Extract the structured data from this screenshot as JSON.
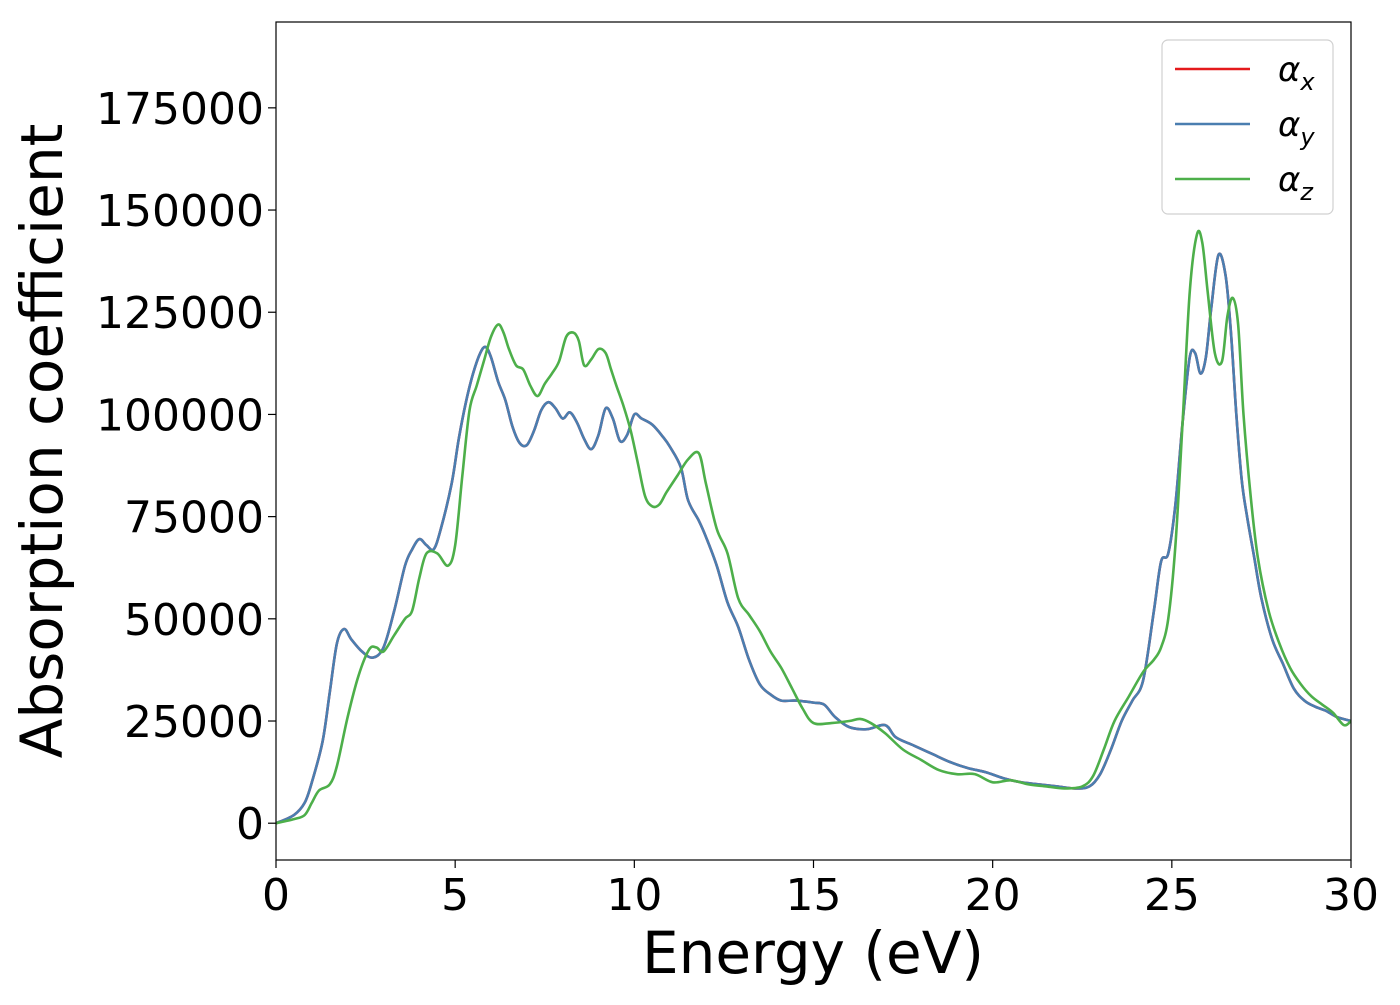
{
  "chart_data": {
    "type": "line",
    "title": "",
    "xlabel": "Energy (eV)",
    "ylabel": "Absorption coefficient",
    "xlim": [
      0,
      30
    ],
    "ylim": [
      -9000,
      196000
    ],
    "xticks": [
      0,
      5,
      10,
      15,
      20,
      25,
      30
    ],
    "yticks": [
      0,
      25000,
      50000,
      75000,
      100000,
      125000,
      150000,
      175000
    ],
    "grid": false,
    "legend_position": "top-right",
    "series": [
      {
        "name": "αx",
        "name_base": "α",
        "name_sub": "x",
        "color": "#e41a1c",
        "x": [
          0,
          0.5,
          0.8,
          1.0,
          1.3,
          1.5,
          1.7,
          1.9,
          2.1,
          2.4,
          2.7,
          3.0,
          3.3,
          3.6,
          3.8,
          4.0,
          4.2,
          4.4,
          4.6,
          4.9,
          5.1,
          5.3,
          5.5,
          5.7,
          5.85,
          6.0,
          6.2,
          6.4,
          6.6,
          6.8,
          7.0,
          7.2,
          7.4,
          7.6,
          7.8,
          8.0,
          8.2,
          8.4,
          8.6,
          8.8,
          9.0,
          9.2,
          9.4,
          9.6,
          9.8,
          10.0,
          10.2,
          10.5,
          10.8,
          11.0,
          11.3,
          11.5,
          11.8,
          12.0,
          12.3,
          12.6,
          12.9,
          13.2,
          13.5,
          13.8,
          14.1,
          14.5,
          15.0,
          15.3,
          15.6,
          16.0,
          16.5,
          17.0,
          17.3,
          17.8,
          18.3,
          18.8,
          19.3,
          19.8,
          20.3,
          20.8,
          21.3,
          21.8,
          22.3,
          22.7,
          23.0,
          23.3,
          23.6,
          23.9,
          24.2,
          24.5,
          24.7,
          24.9,
          25.1,
          25.3,
          25.5,
          25.65,
          25.8,
          25.95,
          26.1,
          26.3,
          26.5,
          26.65,
          26.8,
          26.95,
          27.1,
          27.3,
          27.5,
          27.8,
          28.1,
          28.4,
          28.7,
          29.0,
          29.3,
          29.6,
          30.0
        ],
        "y": [
          0,
          2000,
          5000,
          10000,
          20000,
          32000,
          44000,
          47500,
          45000,
          42000,
          40500,
          43000,
          52000,
          63000,
          67000,
          69500,
          68000,
          67000,
          72000,
          83000,
          94000,
          103000,
          110000,
          115000,
          116500,
          114000,
          108000,
          103500,
          97000,
          93000,
          92500,
          96000,
          101000,
          103000,
          101500,
          99000,
          100500,
          98000,
          94000,
          91500,
          95000,
          101500,
          99000,
          93500,
          95000,
          100000,
          99000,
          97500,
          94500,
          92000,
          87000,
          79000,
          74000,
          70000,
          63000,
          54000,
          48000,
          40000,
          34000,
          31500,
          30000,
          30000,
          29500,
          29000,
          26000,
          23500,
          23000,
          24000,
          21000,
          19000,
          17000,
          15000,
          13500,
          12500,
          11000,
          10000,
          9500,
          9000,
          8500,
          9000,
          12000,
          18000,
          25000,
          30000,
          35000,
          52000,
          64000,
          66000,
          78000,
          98000,
          114000,
          115000,
          110000,
          114000,
          126000,
          139000,
          134000,
          120000,
          100000,
          84000,
          75000,
          65000,
          55000,
          45000,
          39000,
          33000,
          30000,
          28500,
          27500,
          26000,
          25000
        ]
      },
      {
        "name": "αy",
        "name_base": "α",
        "name_sub": "y",
        "color": "#4a7eb0",
        "x": [
          0,
          0.5,
          0.8,
          1.0,
          1.3,
          1.5,
          1.7,
          1.9,
          2.1,
          2.4,
          2.7,
          3.0,
          3.3,
          3.6,
          3.8,
          4.0,
          4.2,
          4.4,
          4.6,
          4.9,
          5.1,
          5.3,
          5.5,
          5.7,
          5.85,
          6.0,
          6.2,
          6.4,
          6.6,
          6.8,
          7.0,
          7.2,
          7.4,
          7.6,
          7.8,
          8.0,
          8.2,
          8.4,
          8.6,
          8.8,
          9.0,
          9.2,
          9.4,
          9.6,
          9.8,
          10.0,
          10.2,
          10.5,
          10.8,
          11.0,
          11.3,
          11.5,
          11.8,
          12.0,
          12.3,
          12.6,
          12.9,
          13.2,
          13.5,
          13.8,
          14.1,
          14.5,
          15.0,
          15.3,
          15.6,
          16.0,
          16.5,
          17.0,
          17.3,
          17.8,
          18.3,
          18.8,
          19.3,
          19.8,
          20.3,
          20.8,
          21.3,
          21.8,
          22.3,
          22.7,
          23.0,
          23.3,
          23.6,
          23.9,
          24.2,
          24.5,
          24.7,
          24.9,
          25.1,
          25.3,
          25.5,
          25.65,
          25.8,
          25.95,
          26.1,
          26.3,
          26.5,
          26.65,
          26.8,
          26.95,
          27.1,
          27.3,
          27.5,
          27.8,
          28.1,
          28.4,
          28.7,
          29.0,
          29.3,
          29.6,
          30.0
        ],
        "y": [
          0,
          2000,
          5000,
          10000,
          20000,
          32000,
          44000,
          47500,
          45000,
          42000,
          40500,
          43000,
          52000,
          63000,
          67000,
          69500,
          68000,
          67000,
          72000,
          83000,
          94000,
          103000,
          110000,
          115000,
          116500,
          114000,
          108000,
          103500,
          97000,
          93000,
          92500,
          96000,
          101000,
          103000,
          101500,
          99000,
          100500,
          98000,
          94000,
          91500,
          95000,
          101500,
          99000,
          93500,
          95000,
          100000,
          99000,
          97500,
          94500,
          92000,
          87000,
          79000,
          74000,
          70000,
          63000,
          54000,
          48000,
          40000,
          34000,
          31500,
          30000,
          30000,
          29500,
          29000,
          26000,
          23500,
          23000,
          24000,
          21000,
          19000,
          17000,
          15000,
          13500,
          12500,
          11000,
          10000,
          9500,
          9000,
          8500,
          9000,
          12000,
          18000,
          25000,
          30000,
          35000,
          52000,
          64000,
          66000,
          78000,
          98000,
          114000,
          115000,
          110000,
          114000,
          126000,
          139000,
          134000,
          120000,
          100000,
          84000,
          75000,
          65000,
          55000,
          45000,
          39000,
          33000,
          30000,
          28500,
          27500,
          26000,
          25000
        ]
      },
      {
        "name": "αz",
        "name_base": "α",
        "name_sub": "z",
        "color": "#4daf4a",
        "x": [
          0,
          0.5,
          0.8,
          1.0,
          1.2,
          1.5,
          1.7,
          2.0,
          2.3,
          2.6,
          2.8,
          3.0,
          3.3,
          3.6,
          3.8,
          4.0,
          4.2,
          4.5,
          4.8,
          5.0,
          5.2,
          5.4,
          5.6,
          5.8,
          6.0,
          6.2,
          6.35,
          6.5,
          6.7,
          6.9,
          7.1,
          7.3,
          7.5,
          7.7,
          7.9,
          8.1,
          8.3,
          8.45,
          8.6,
          8.8,
          9.0,
          9.2,
          9.35,
          9.5,
          9.7,
          9.9,
          10.1,
          10.3,
          10.5,
          10.7,
          10.9,
          11.2,
          11.5,
          11.8,
          12.0,
          12.3,
          12.6,
          12.9,
          13.2,
          13.5,
          13.8,
          14.1,
          14.4,
          14.7,
          15.0,
          15.5,
          16.0,
          16.3,
          16.6,
          17.0,
          17.5,
          18.0,
          18.5,
          19.0,
          19.5,
          20.0,
          20.5,
          21.0,
          21.5,
          22.0,
          22.5,
          22.8,
          23.1,
          23.4,
          23.8,
          24.2,
          24.5,
          24.7,
          24.9,
          25.1,
          25.3,
          25.5,
          25.7,
          25.85,
          26.0,
          26.2,
          26.4,
          26.55,
          26.7,
          26.85,
          27.0,
          27.2,
          27.4,
          27.7,
          28.0,
          28.3,
          28.6,
          28.9,
          29.2,
          29.5,
          29.8,
          30.0
        ],
        "y": [
          0,
          1000,
          2000,
          5000,
          8000,
          9500,
          14000,
          26000,
          36000,
          42500,
          43000,
          42000,
          46000,
          50000,
          52000,
          60000,
          66000,
          66000,
          63000,
          68000,
          85000,
          101000,
          107000,
          113000,
          119000,
          122000,
          120000,
          116000,
          112000,
          111000,
          107000,
          104500,
          107500,
          110000,
          113000,
          119000,
          120000,
          118000,
          112000,
          113500,
          116000,
          115000,
          111000,
          107000,
          102000,
          96000,
          88000,
          80000,
          77500,
          78000,
          81000,
          85000,
          89000,
          90500,
          83000,
          72000,
          66000,
          55000,
          51000,
          47000,
          42000,
          38000,
          33000,
          28000,
          24500,
          24500,
          25000,
          25500,
          24500,
          22000,
          18000,
          15500,
          13000,
          12000,
          12000,
          10000,
          10500,
          9500,
          9000,
          8500,
          9000,
          11500,
          18000,
          25000,
          31000,
          37000,
          40000,
          43000,
          50000,
          68000,
          98000,
          130000,
          144000,
          142000,
          130000,
          115000,
          113000,
          124000,
          128500,
          122000,
          100000,
          80000,
          65000,
          52000,
          44000,
          38000,
          34000,
          31000,
          29000,
          27000,
          24000,
          25000
        ]
      }
    ]
  }
}
